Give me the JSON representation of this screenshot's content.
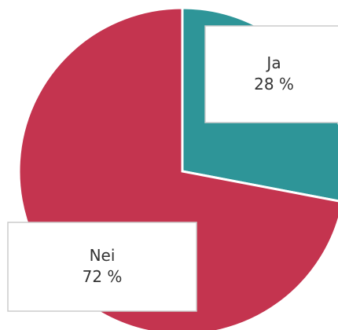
{
  "chart_data": {
    "type": "pie",
    "categories": [
      "Ja",
      "Nei"
    ],
    "values": [
      28,
      72
    ],
    "value_labels": [
      "28 %",
      "72 %"
    ],
    "colors": [
      "#2e9598",
      "#c4344f"
    ]
  }
}
